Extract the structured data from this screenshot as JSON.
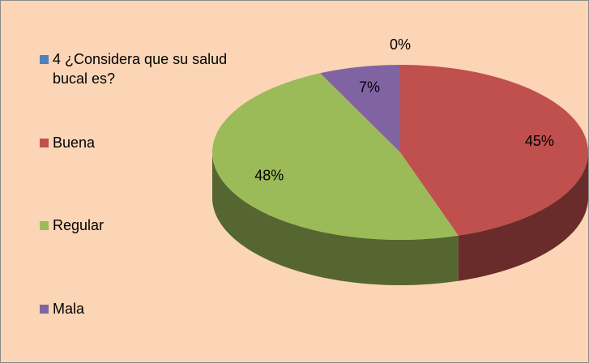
{
  "chart_data": {
    "type": "pie",
    "categories": [
      "4 ¿Considera que su salud bucal es?",
      "Buena",
      "Regular",
      "Mala"
    ],
    "values": [
      0,
      45,
      48,
      7
    ],
    "value_labels": [
      "0%",
      "45%",
      "48%",
      "7%"
    ],
    "colors": [
      "#4f81bd",
      "#c0504d",
      "#9bbb59",
      "#8064a2"
    ],
    "legend": "left"
  }
}
